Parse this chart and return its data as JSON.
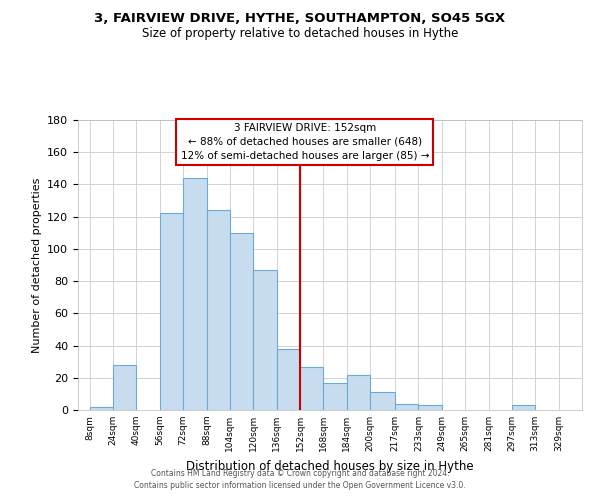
{
  "title": "3, FAIRVIEW DRIVE, HYTHE, SOUTHAMPTON, SO45 5GX",
  "subtitle": "Size of property relative to detached houses in Hythe",
  "xlabel": "Distribution of detached houses by size in Hythe",
  "ylabel": "Number of detached properties",
  "bar_color": "#c8dcf0",
  "bar_edge_color": "#6aaad4",
  "bin_edges": [
    8,
    24,
    40,
    56,
    72,
    88,
    104,
    120,
    136,
    152,
    168,
    184,
    200,
    217,
    233,
    249,
    265,
    281,
    297,
    313,
    329,
    345
  ],
  "bar_heights": [
    2,
    28,
    0,
    122,
    144,
    124,
    110,
    87,
    38,
    27,
    17,
    22,
    11,
    4,
    3,
    0,
    0,
    0,
    3,
    0,
    0
  ],
  "x_tick_labels": [
    "8sqm",
    "24sqm",
    "40sqm",
    "56sqm",
    "72sqm",
    "88sqm",
    "104sqm",
    "120sqm",
    "136sqm",
    "152sqm",
    "168sqm",
    "184sqm",
    "200sqm",
    "217sqm",
    "233sqm",
    "249sqm",
    "265sqm",
    "281sqm",
    "297sqm",
    "313sqm",
    "329sqm"
  ],
  "x_tick_positions": [
    8,
    24,
    40,
    56,
    72,
    88,
    104,
    120,
    136,
    152,
    168,
    184,
    200,
    217,
    233,
    249,
    265,
    281,
    297,
    313,
    329
  ],
  "vline_x": 152,
  "vline_color": "#cc0000",
  "ylim": [
    0,
    180
  ],
  "yticks": [
    0,
    20,
    40,
    60,
    80,
    100,
    120,
    140,
    160,
    180
  ],
  "annotation_title": "3 FAIRVIEW DRIVE: 152sqm",
  "annotation_line1": "← 88% of detached houses are smaller (648)",
  "annotation_line2": "12% of semi-detached houses are larger (85) →",
  "footer_line1": "Contains HM Land Registry data © Crown copyright and database right 2024.",
  "footer_line2": "Contains public sector information licensed under the Open Government Licence v3.0.",
  "background_color": "#ffffff",
  "grid_color": "#cccccc"
}
